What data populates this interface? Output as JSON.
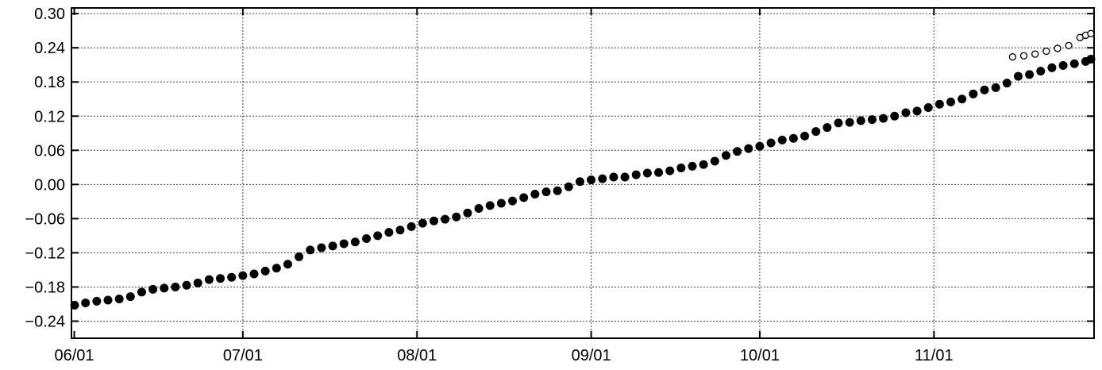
{
  "chart_data": {
    "type": "scatter",
    "title": "",
    "xlabel": "",
    "ylabel": "",
    "x_ticks": [
      {
        "date": "2023-06-01",
        "label": "06/01"
      },
      {
        "date": "2023-07-01",
        "label": "07/01"
      },
      {
        "date": "2023-08-01",
        "label": "08/01"
      },
      {
        "date": "2023-09-01",
        "label": "09/01"
      },
      {
        "date": "2023-10-01",
        "label": "10/01"
      },
      {
        "date": "2023-11-01",
        "label": "11/01"
      }
    ],
    "xlim": [
      "2023-06-01",
      "2023-11-29"
    ],
    "y_ticks": [
      {
        "value": 0.3,
        "label": "0.30"
      },
      {
        "value": 0.24,
        "label": "0.24"
      },
      {
        "value": 0.18,
        "label": "0.18"
      },
      {
        "value": 0.12,
        "label": "0.12"
      },
      {
        "value": 0.06,
        "label": "0.06"
      },
      {
        "value": 0.0,
        "label": "0.00"
      },
      {
        "value": -0.06,
        "label": "−0.06"
      },
      {
        "value": -0.12,
        "label": "−0.12"
      },
      {
        "value": -0.18,
        "label": "−0.18"
      },
      {
        "value": -0.24,
        "label": "−0.24"
      }
    ],
    "ylim": [
      -0.27,
      0.31
    ],
    "grid": true,
    "legend": "none",
    "series": [
      {
        "style": "filled",
        "color": "#000000",
        "points": [
          [
            "2023-06-01",
            -0.212
          ],
          [
            "2023-06-03",
            -0.208
          ],
          [
            "2023-06-05",
            -0.205
          ],
          [
            "2023-06-07",
            -0.203
          ],
          [
            "2023-06-09",
            -0.201
          ],
          [
            "2023-06-11",
            -0.197
          ],
          [
            "2023-06-13",
            -0.189
          ],
          [
            "2023-06-15",
            -0.184
          ],
          [
            "2023-06-17",
            -0.182
          ],
          [
            "2023-06-19",
            -0.18
          ],
          [
            "2023-06-21",
            -0.177
          ],
          [
            "2023-06-23",
            -0.173
          ],
          [
            "2023-06-25",
            -0.167
          ],
          [
            "2023-06-27",
            -0.165
          ],
          [
            "2023-06-29",
            -0.163
          ],
          [
            "2023-07-01",
            -0.16
          ],
          [
            "2023-07-03",
            -0.157
          ],
          [
            "2023-07-05",
            -0.152
          ],
          [
            "2023-07-07",
            -0.147
          ],
          [
            "2023-07-09",
            -0.14
          ],
          [
            "2023-07-11",
            -0.127
          ],
          [
            "2023-07-13",
            -0.115
          ],
          [
            "2023-07-15",
            -0.111
          ],
          [
            "2023-07-17",
            -0.108
          ],
          [
            "2023-07-19",
            -0.104
          ],
          [
            "2023-07-21",
            -0.101
          ],
          [
            "2023-07-23",
            -0.095
          ],
          [
            "2023-07-25",
            -0.09
          ],
          [
            "2023-07-27",
            -0.084
          ],
          [
            "2023-07-29",
            -0.08
          ],
          [
            "2023-07-31",
            -0.074
          ],
          [
            "2023-08-02",
            -0.068
          ],
          [
            "2023-08-04",
            -0.064
          ],
          [
            "2023-08-06",
            -0.061
          ],
          [
            "2023-08-08",
            -0.057
          ],
          [
            "2023-08-10",
            -0.05
          ],
          [
            "2023-08-12",
            -0.042
          ],
          [
            "2023-08-14",
            -0.037
          ],
          [
            "2023-08-16",
            -0.033
          ],
          [
            "2023-08-18",
            -0.029
          ],
          [
            "2023-08-20",
            -0.023
          ],
          [
            "2023-08-22",
            -0.017
          ],
          [
            "2023-08-24",
            -0.013
          ],
          [
            "2023-08-26",
            -0.011
          ],
          [
            "2023-08-28",
            -0.004
          ],
          [
            "2023-08-30",
            0.005
          ],
          [
            "2023-09-01",
            0.008
          ],
          [
            "2023-09-03",
            0.01
          ],
          [
            "2023-09-05",
            0.013
          ],
          [
            "2023-09-07",
            0.013
          ],
          [
            "2023-09-09",
            0.017
          ],
          [
            "2023-09-11",
            0.02
          ],
          [
            "2023-09-13",
            0.021
          ],
          [
            "2023-09-15",
            0.024
          ],
          [
            "2023-09-17",
            0.029
          ],
          [
            "2023-09-19",
            0.032
          ],
          [
            "2023-09-21",
            0.035
          ],
          [
            "2023-09-23",
            0.041
          ],
          [
            "2023-09-25",
            0.051
          ],
          [
            "2023-09-27",
            0.058
          ],
          [
            "2023-09-29",
            0.063
          ],
          [
            "2023-10-01",
            0.067
          ],
          [
            "2023-10-03",
            0.073
          ],
          [
            "2023-10-05",
            0.078
          ],
          [
            "2023-10-07",
            0.081
          ],
          [
            "2023-10-09",
            0.085
          ],
          [
            "2023-10-11",
            0.093
          ],
          [
            "2023-10-13",
            0.1
          ],
          [
            "2023-10-15",
            0.108
          ],
          [
            "2023-10-17",
            0.109
          ],
          [
            "2023-10-19",
            0.112
          ],
          [
            "2023-10-21",
            0.114
          ],
          [
            "2023-10-23",
            0.116
          ],
          [
            "2023-10-25",
            0.12
          ],
          [
            "2023-10-27",
            0.126
          ],
          [
            "2023-10-29",
            0.129
          ],
          [
            "2023-10-31",
            0.135
          ],
          [
            "2023-11-02",
            0.141
          ],
          [
            "2023-11-04",
            0.145
          ],
          [
            "2023-11-06",
            0.15
          ],
          [
            "2023-11-08",
            0.159
          ],
          [
            "2023-11-10",
            0.166
          ],
          [
            "2023-11-12",
            0.17
          ],
          [
            "2023-11-14",
            0.178
          ],
          [
            "2023-11-16",
            0.19
          ],
          [
            "2023-11-18",
            0.193
          ],
          [
            "2023-11-20",
            0.199
          ],
          [
            "2023-11-22",
            0.205
          ],
          [
            "2023-11-24",
            0.209
          ],
          [
            "2023-11-26",
            0.212
          ],
          [
            "2023-11-28",
            0.216
          ],
          [
            "2023-11-30",
            0.22
          ]
        ]
      },
      {
        "style": "open",
        "color": "#000000",
        "points": [
          [
            "2023-11-15",
            0.224
          ],
          [
            "2023-11-17",
            0.226
          ],
          [
            "2023-11-19",
            0.229
          ],
          [
            "2023-11-21",
            0.234
          ],
          [
            "2023-11-23",
            0.239
          ],
          [
            "2023-11-25",
            0.244
          ],
          [
            "2023-11-27",
            0.258
          ],
          [
            "2023-11-28",
            0.262
          ],
          [
            "2023-11-29",
            0.265
          ]
        ]
      }
    ]
  }
}
